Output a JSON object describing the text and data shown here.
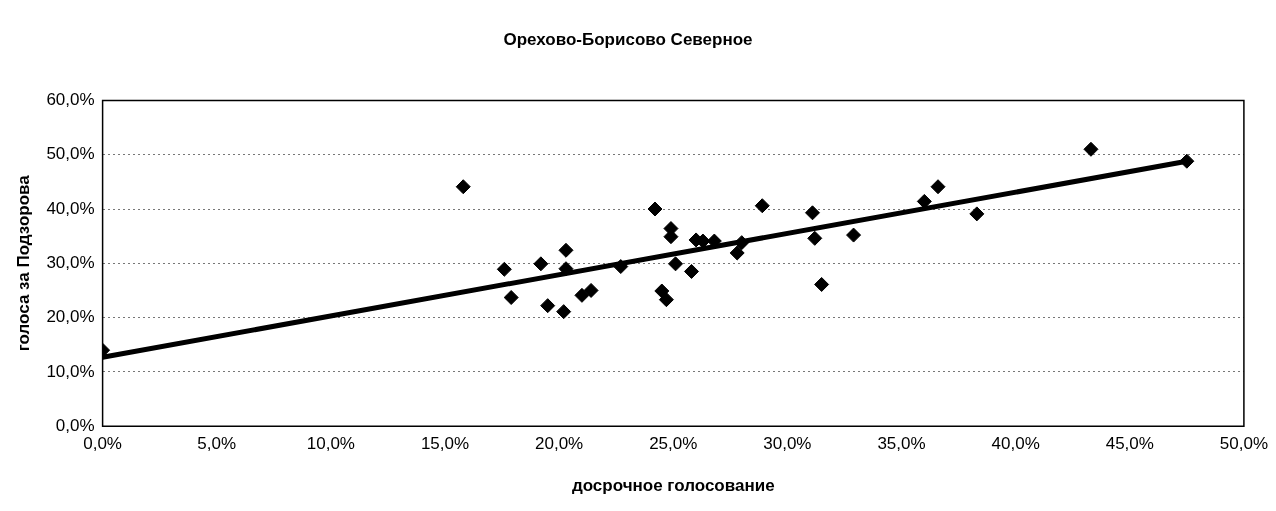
{
  "chart_data": {
    "type": "scatter",
    "title": "Орехово-Борисово Северное",
    "xlabel": "досрочное голосование",
    "ylabel": "голоса за Подзорова",
    "x": [
      0,
      15.8,
      17.6,
      17.9,
      19.2,
      19.5,
      20.3,
      20.3,
      20.2,
      21.0,
      21.4,
      22.7,
      24.2,
      24.5,
      24.7,
      24.9,
      24.9,
      25.1,
      25.8,
      26.0,
      26.3,
      26.8,
      27.8,
      28.0,
      28.9,
      31.1,
      31.2,
      31.5,
      32.9,
      36.0,
      36.6,
      38.3,
      43.3,
      47.5
    ],
    "series": [
      {
        "type": "scatter",
        "color": "#000000",
        "marker": "diamond",
        "values": [
          14.0,
          44.1,
          28.9,
          23.7,
          29.9,
          22.2,
          32.4,
          29.0,
          21.1,
          24.1,
          25.0,
          29.4,
          40.0,
          24.9,
          23.3,
          36.4,
          34.9,
          29.9,
          28.5,
          34.3,
          34.1,
          34.1,
          31.9,
          33.8,
          40.6,
          39.3,
          34.6,
          26.1,
          35.2,
          41.4,
          44.1,
          39.1,
          51.0,
          48.8
        ]
      },
      {
        "type": "line",
        "color": "#000000",
        "x": [
          0,
          47.5
        ],
        "values": [
          12.7,
          48.8
        ]
      }
    ],
    "xlim": [
      0,
      50
    ],
    "ylim": [
      0,
      60
    ],
    "xticks": [
      {
        "value": 0,
        "label": "0,0%"
      },
      {
        "value": 5,
        "label": "5,0%"
      },
      {
        "value": 10,
        "label": "10,0%"
      },
      {
        "value": 15,
        "label": "15,0%"
      },
      {
        "value": 20,
        "label": "20,0%"
      },
      {
        "value": 25,
        "label": "25,0%"
      },
      {
        "value": 30,
        "label": "30,0%"
      },
      {
        "value": 35,
        "label": "35,0%"
      },
      {
        "value": 40,
        "label": "40,0%"
      },
      {
        "value": 45,
        "label": "45,0%"
      },
      {
        "value": 50,
        "label": "50,0%"
      }
    ],
    "yticks": [
      {
        "value": 0,
        "label": "0,0%"
      },
      {
        "value": 10,
        "label": "10,0%"
      },
      {
        "value": 20,
        "label": "20,0%"
      },
      {
        "value": 30,
        "label": "30,0%"
      },
      {
        "value": 40,
        "label": "40,0%"
      },
      {
        "value": 50,
        "label": "50,0%"
      },
      {
        "value": 60,
        "label": "60,0%"
      }
    ],
    "grid": "y",
    "legend": false
  }
}
